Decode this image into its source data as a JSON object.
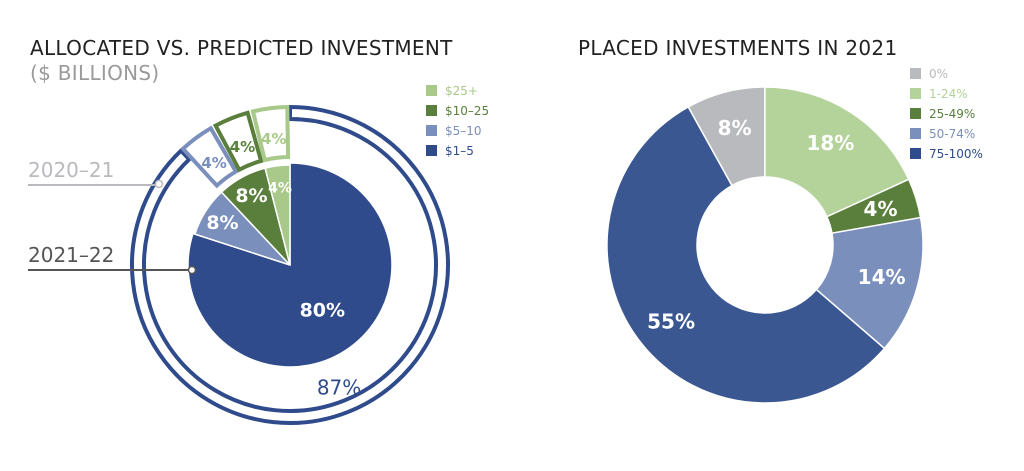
{
  "chart_data": [
    {
      "type": "pie",
      "title": "ALLOCATED VS. PREDICTED INVESTMENT",
      "subtitle": "($ BILLIONS)",
      "legend_position": "top-right",
      "legend": [
        {
          "label": "$25+",
          "color": "#a8c98a"
        },
        {
          "label": "$10–25",
          "color": "#5a7f3c"
        },
        {
          "label": "$5–10",
          "color": "#7b8fbc"
        },
        {
          "label": "$1–5",
          "color": "#2f4b8b"
        }
      ],
      "series": [
        {
          "name": "2020–21",
          "slices": [
            {
              "category": "$1–5",
              "value": 87,
              "label": "87%"
            },
            {
              "category": "$5–10",
              "value": 4,
              "label": "4%"
            },
            {
              "category": "$10–25",
              "value": 4,
              "label": "4%"
            },
            {
              "category": "$25+",
              "value": 4,
              "label": "4%"
            }
          ]
        },
        {
          "name": "2021–22",
          "slices": [
            {
              "category": "$1–5",
              "value": 80,
              "label": "80%"
            },
            {
              "category": "$5–10",
              "value": 8,
              "label": "8%"
            },
            {
              "category": "$10–25",
              "value": 8,
              "label": "8%"
            },
            {
              "category": "$25+",
              "value": 4,
              "label": "4%"
            }
          ]
        }
      ]
    },
    {
      "type": "pie",
      "title": "PLACED INVESTMENTS IN 2021",
      "legend_position": "top-right",
      "legend": [
        {
          "label": "0%",
          "color": "#b9babd"
        },
        {
          "label": "1-24%",
          "color": "#b3d39a"
        },
        {
          "label": "25-49%",
          "color": "#5a7f3c"
        },
        {
          "label": "50-74%",
          "color": "#7b8fbc"
        },
        {
          "label": "75-100%",
          "color": "#2f4b8b"
        }
      ],
      "slices": [
        {
          "category": "0%",
          "value": 8,
          "label": "8%",
          "color": "#b9babd"
        },
        {
          "category": "1-24%",
          "value": 18,
          "label": "18%",
          "color": "#b3d39a"
        },
        {
          "category": "25-49%",
          "value": 4,
          "label": "4%",
          "color": "#5a7f3c"
        },
        {
          "category": "50-74%",
          "value": 14,
          "label": "14%",
          "color": "#7b8fbc"
        },
        {
          "category": "75-100%",
          "value": 55,
          "label": "55%",
          "color": "#3a5792"
        }
      ]
    }
  ]
}
